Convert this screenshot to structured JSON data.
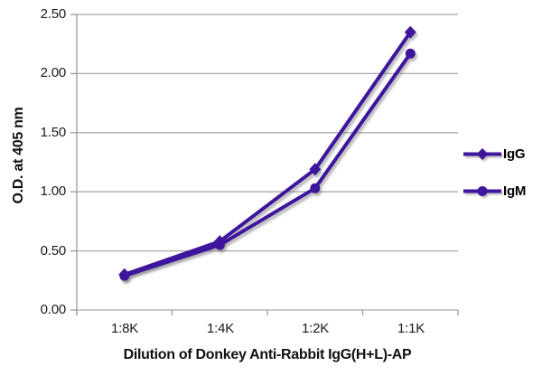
{
  "chart_data": {
    "type": "line",
    "title": "",
    "xlabel": "Dilution of Donkey Anti-Rabbit IgG(H+L)-AP",
    "ylabel": "O.D. at 405 nm",
    "categories": [
      "1:8K",
      "1:4K",
      "1:2K",
      "1:1K"
    ],
    "series": [
      {
        "name": "IgG",
        "marker": "diamond",
        "values": [
          0.3,
          0.58,
          1.19,
          2.35
        ]
      },
      {
        "name": "IgM",
        "marker": "circle",
        "values": [
          0.29,
          0.55,
          1.03,
          2.17
        ]
      }
    ],
    "ylim": [
      0,
      2.5
    ],
    "ytick_step": 0.5,
    "ytick_labels": [
      "0.00",
      "0.50",
      "1.00",
      "1.50",
      "2.00",
      "2.50"
    ],
    "grid": true,
    "legend_position": "right",
    "colors": {
      "series": "#3e169d",
      "gridline": "#a9a9a9",
      "axis": "#9b9b9b",
      "text": "#1a1a1a"
    }
  }
}
